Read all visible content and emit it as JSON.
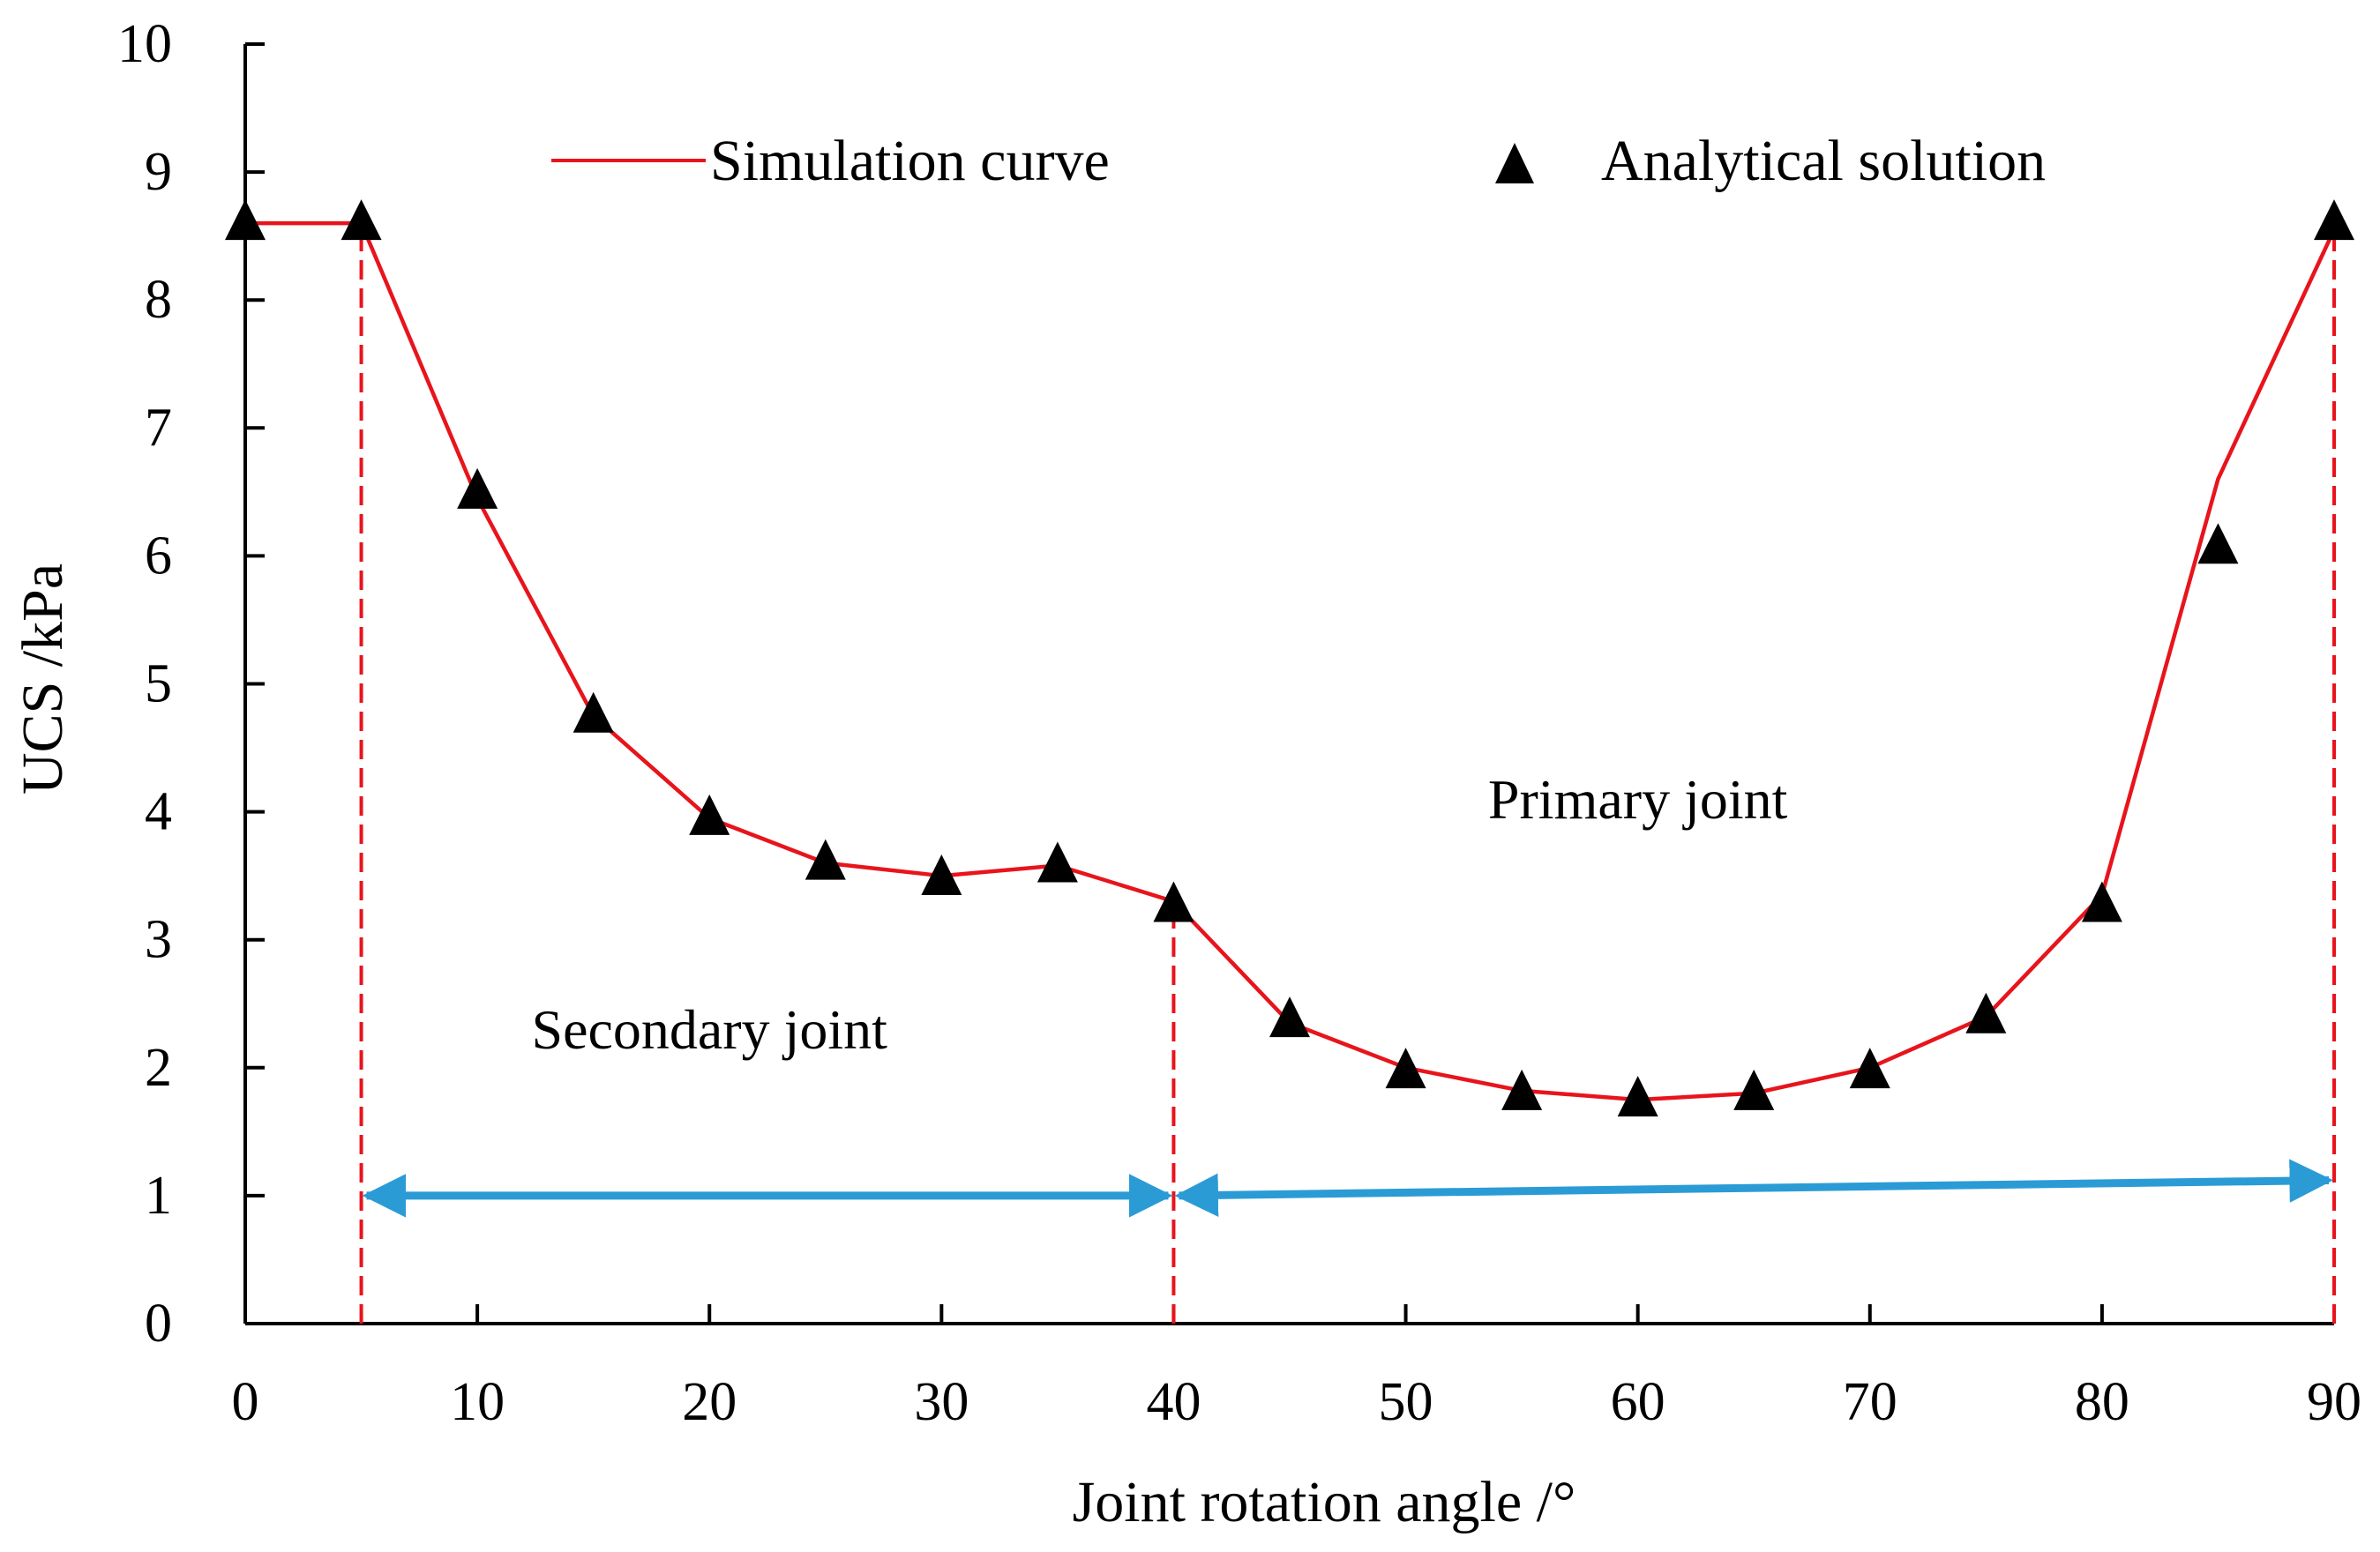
{
  "chart_data": {
    "type": "line",
    "title": "",
    "xlabel": "Joint rotation angle /°",
    "ylabel": "UCS /kPa",
    "xlim": [
      0,
      90
    ],
    "ylim": [
      0,
      10
    ],
    "xticks": [
      "0",
      "10",
      "20",
      "30",
      "40",
      "50",
      "60",
      "70",
      "80",
      "90"
    ],
    "yticks": [
      "0",
      "1",
      "2",
      "3",
      "4",
      "5",
      "6",
      "7",
      "8",
      "9",
      "10"
    ],
    "grid": false,
    "legend_position": "top",
    "series": [
      {
        "name": "Simulation curve",
        "style": "line",
        "color": "#e8141c",
        "x": [
          0,
          5,
          10,
          15,
          20,
          25,
          30,
          35,
          40,
          45,
          50,
          55,
          60,
          65,
          70,
          75,
          80,
          85,
          90
        ],
        "y": [
          8.6,
          8.6,
          6.45,
          4.75,
          3.95,
          3.6,
          3.5,
          3.58,
          3.3,
          2.35,
          2.0,
          1.82,
          1.75,
          1.8,
          2.0,
          2.4,
          3.35,
          6.6,
          8.55
        ]
      },
      {
        "name": "Analytical solution",
        "style": "marker-triangle",
        "color": "#000000",
        "x": [
          0,
          5,
          10,
          15,
          20,
          25,
          30,
          35,
          40,
          45,
          50,
          55,
          60,
          65,
          70,
          75,
          80,
          85,
          90
        ],
        "y": [
          8.6,
          8.6,
          6.5,
          4.75,
          3.95,
          3.6,
          3.48,
          3.58,
          3.27,
          2.37,
          1.97,
          1.8,
          1.75,
          1.8,
          1.97,
          2.4,
          3.27,
          6.07,
          8.6
        ]
      }
    ],
    "vertical_lines": [
      {
        "x": 5,
        "style": "dashed",
        "color": "#e8141c"
      },
      {
        "x": 40,
        "style": "dashed",
        "color": "#e8141c"
      },
      {
        "x": 90,
        "style": "dashed",
        "color": "#e8141c"
      }
    ],
    "ranges": [
      {
        "label": "Secondary joint",
        "x_start": 5,
        "x_end": 40,
        "y_start": 1.0,
        "y_end": 1.0,
        "color": "#2b9bd6",
        "label_x": 20,
        "label_y": 2.15
      },
      {
        "label": "Primary joint",
        "x_start": 40,
        "x_end": 90,
        "y_start": 1.0,
        "y_end": 1.12,
        "color": "#2b9bd6",
        "label_x": 60,
        "label_y": 3.95
      }
    ]
  }
}
